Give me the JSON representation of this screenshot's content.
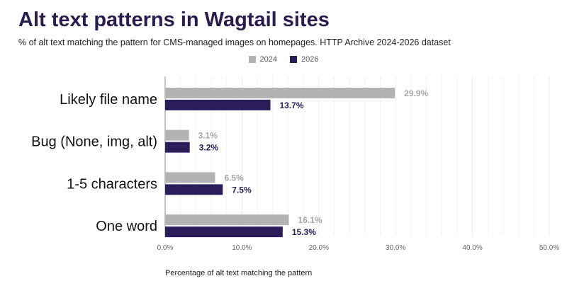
{
  "title": "Alt text patterns in Wagtail sites",
  "subtitle": "% of alt text matching the pattern for CMS-managed images on homepages. HTTP Archive 2024-2026 dataset",
  "colors": {
    "s2024": "#b3b3b3",
    "s2026": "#2a1d5a",
    "grid": "#ececec",
    "axis": "#888888"
  },
  "chart_data": {
    "type": "bar",
    "orientation": "horizontal",
    "categories": [
      "Likely file name",
      "Bug (None, img, alt)",
      "1-5 characters",
      "One word"
    ],
    "series": [
      {
        "name": "2024",
        "values": [
          29.9,
          3.1,
          6.5,
          16.1
        ],
        "labels": [
          "29.9%",
          "3.1%",
          "6.5%",
          "16.1%"
        ]
      },
      {
        "name": "2026",
        "values": [
          13.7,
          3.2,
          7.5,
          15.3
        ],
        "labels": [
          "13.7%",
          "3.2%",
          "7.5%",
          "15.3%"
        ]
      }
    ],
    "xlim": [
      0,
      50
    ],
    "xticks": [
      0,
      10,
      20,
      30,
      40,
      50
    ],
    "xtick_labels": [
      "0.0%",
      "10.0%",
      "20.0%",
      "30.0%",
      "40.0%",
      "50.0%"
    ],
    "xlabel": "Percentage of alt text matching the pattern",
    "legend_position": "top-center",
    "grid": true
  }
}
